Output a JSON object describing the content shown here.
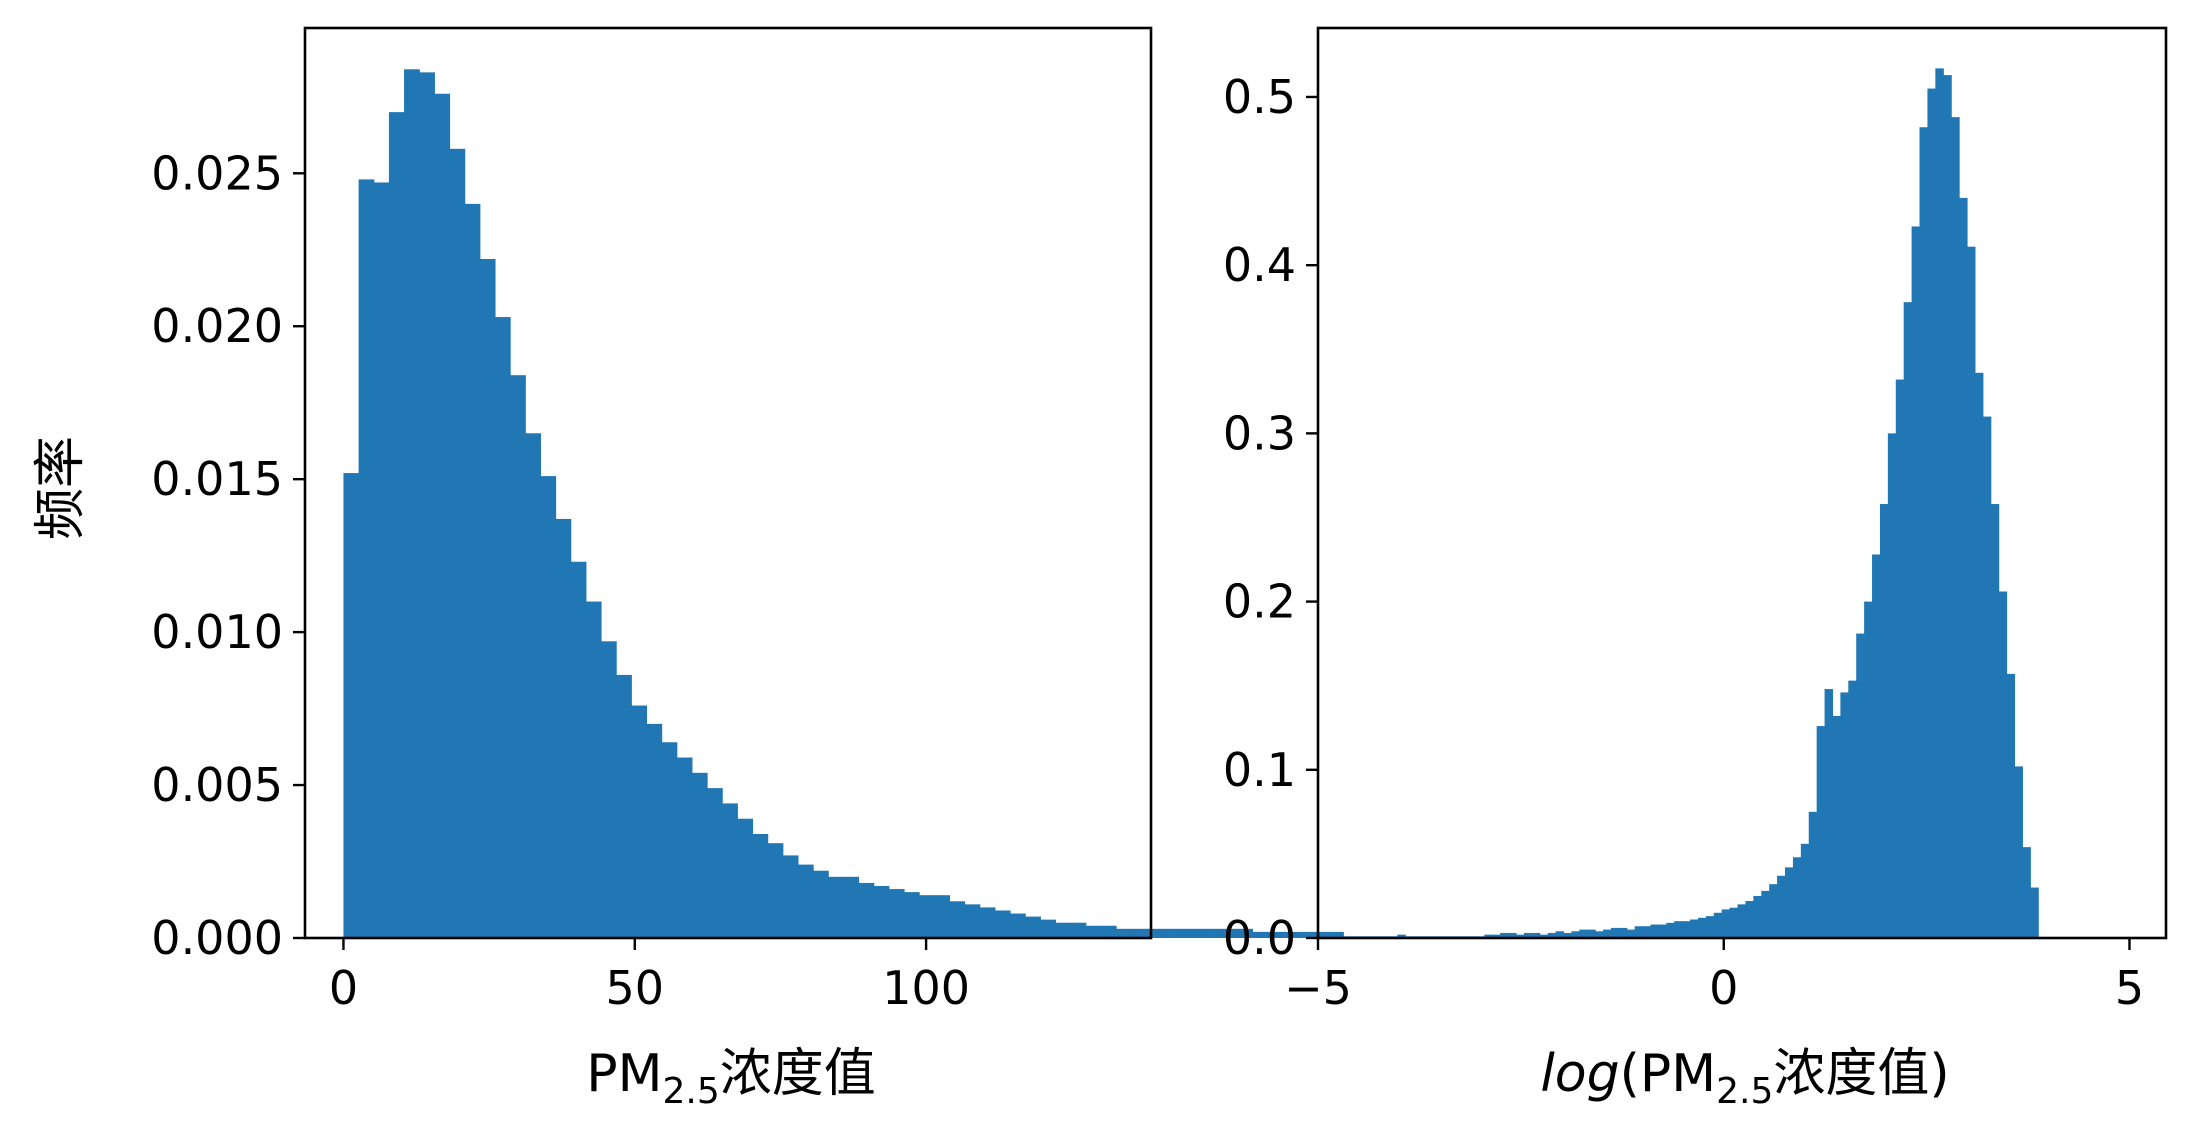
{
  "colors": {
    "bar": "#2077b4",
    "axis": "#000000",
    "background": "#ffffff"
  },
  "chart_data": [
    {
      "type": "bar",
      "title": "",
      "xlabel_main": "PM",
      "xlabel_sub": "2.5",
      "xlabel_suffix": "浓度值",
      "ylabel": "频率",
      "xlim": [
        -6.6,
        138.6
      ],
      "ylim": [
        0,
        0.02975
      ],
      "xticks": [
        0,
        50,
        100
      ],
      "xtick_labels": [
        "0",
        "50",
        "100"
      ],
      "yticks": [
        0,
        0.005,
        0.01,
        0.015,
        0.02,
        0.025
      ],
      "ytick_labels": [
        "0.000",
        "0.005",
        "0.010",
        "0.015",
        "0.020",
        "0.025"
      ],
      "bin_start": 0,
      "bin_width": 2.6,
      "values": [
        0.0152,
        0.0248,
        0.0247,
        0.027,
        0.0284,
        0.0283,
        0.0276,
        0.0258,
        0.024,
        0.0222,
        0.0203,
        0.0184,
        0.0165,
        0.0151,
        0.0137,
        0.0123,
        0.011,
        0.0097,
        0.0086,
        0.0076,
        0.007,
        0.0064,
        0.0059,
        0.0054,
        0.0049,
        0.0044,
        0.0039,
        0.0034,
        0.0031,
        0.0027,
        0.0024,
        0.0022,
        0.002,
        0.002,
        0.0018,
        0.0017,
        0.0016,
        0.0015,
        0.0014,
        0.0014,
        0.0012,
        0.0011,
        0.001,
        0.0009,
        0.0008,
        0.0007,
        0.0006,
        0.0005,
        0.0005,
        0.0004,
        0.0004,
        0.0003,
        0.0003,
        0.0003,
        0.0003,
        0.0003,
        0.0003,
        0.0003,
        0.0003,
        0.0003,
        0.0002,
        0.0002,
        0.0002,
        0.0002,
        0.0002,
        0.0002
      ],
      "grid": false,
      "legend": "none"
    },
    {
      "type": "bar",
      "title": "",
      "xlabel_prefix": "log",
      "xlabel_main": "(PM",
      "xlabel_sub": "2.5",
      "xlabel_suffix": "浓度值)",
      "ylabel": "",
      "xlim": [
        -5.0,
        5.45
      ],
      "ylim": [
        0,
        0.541
      ],
      "xticks": [
        -5,
        0,
        5
      ],
      "xtick_labels": [
        "−5",
        "0",
        "5"
      ],
      "yticks": [
        0,
        0.1,
        0.2,
        0.3,
        0.4,
        0.5
      ],
      "ytick_labels": [
        "0.0",
        "0.1",
        "0.2",
        "0.3",
        "0.4",
        "0.5"
      ],
      "bin_start": -4.9,
      "bin_width": 0.0975,
      "values": [
        0.001,
        0.001,
        0.001,
        0.001,
        0.001,
        0.001,
        0.001,
        0.001,
        0.001,
        0.002,
        0.001,
        0.001,
        0.001,
        0.001,
        0.001,
        0.001,
        0.001,
        0.001,
        0.001,
        0.001,
        0.002,
        0.002,
        0.003,
        0.003,
        0.002,
        0.003,
        0.003,
        0.002,
        0.003,
        0.004,
        0.003,
        0.004,
        0.005,
        0.005,
        0.004,
        0.005,
        0.006,
        0.006,
        0.005,
        0.007,
        0.007,
        0.008,
        0.008,
        0.009,
        0.01,
        0.01,
        0.011,
        0.012,
        0.013,
        0.015,
        0.017,
        0.018,
        0.02,
        0.022,
        0.025,
        0.028,
        0.032,
        0.037,
        0.042,
        0.048,
        0.056,
        0.075,
        0.126,
        0.148,
        0.132,
        0.146,
        0.153,
        0.181,
        0.2,
        0.228,
        0.258,
        0.3,
        0.332,
        0.378,
        0.423,
        0.482,
        0.505,
        0.517,
        0.513,
        0.488,
        0.44,
        0.411,
        0.336,
        0.31,
        0.258,
        0.206,
        0.157,
        0.102,
        0.054,
        0.03
      ],
      "grid": false,
      "legend": "none"
    }
  ]
}
